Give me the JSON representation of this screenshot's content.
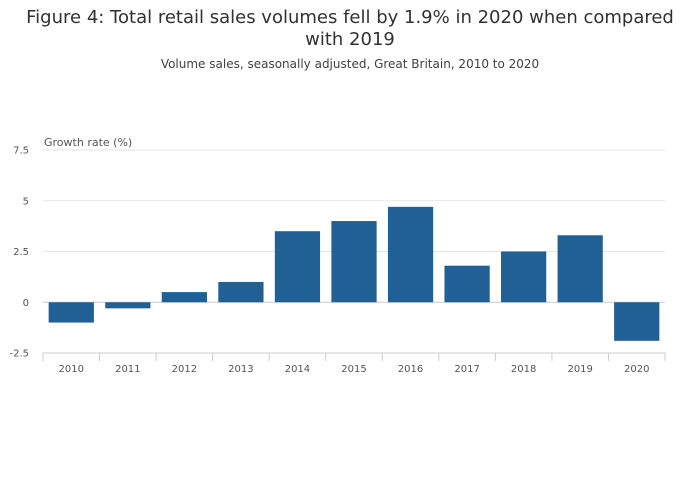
{
  "chart_data": {
    "type": "bar",
    "title": "Figure 4: Total retail sales volumes fell by 1.9% in 2020 when compared with 2019",
    "subtitle": "Volume sales, seasonally adjusted, Great Britain, 2010 to 2020",
    "ylabel": "Growth rate (%)",
    "xlabel": "",
    "categories": [
      "2010",
      "2011",
      "2012",
      "2013",
      "2014",
      "2015",
      "2016",
      "2017",
      "2018",
      "2019",
      "2020"
    ],
    "values": [
      -1.0,
      -0.3,
      0.5,
      1.0,
      3.5,
      4.0,
      4.7,
      1.8,
      2.5,
      3.3,
      -1.9
    ],
    "ylim": [
      -2.5,
      7.5
    ],
    "yticks": [
      "-2.5",
      "0",
      "2.5",
      "5",
      "7.5"
    ],
    "ytick_values": [
      -2.5,
      0,
      2.5,
      5,
      7.5
    ],
    "grid": true,
    "legend": "none",
    "bar_color": "#206095",
    "grid_color": "#e6e6e6",
    "zero_line_color": "#cccccc"
  }
}
